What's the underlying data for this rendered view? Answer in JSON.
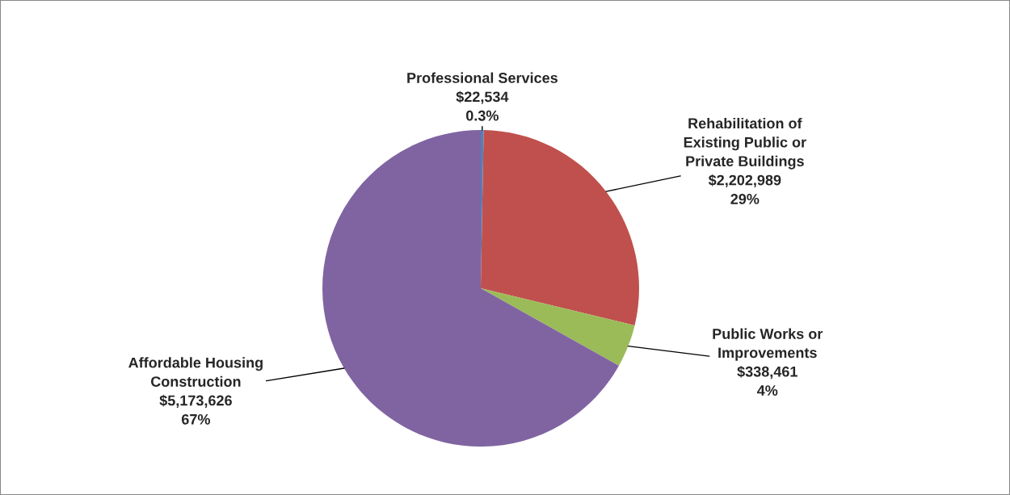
{
  "chart_data": {
    "type": "pie",
    "categories": [
      "Professional Services",
      "Rehabilitation of\nExisting Public or\nPrivate Buildings",
      "Public Works or\nImprovements",
      "Affordable Housing\nConstruction"
    ],
    "values": [
      22534,
      2202989,
      338461,
      5173626
    ],
    "value_labels": [
      "$22,534\n0.3%",
      "$2,202,989\n29%",
      "$338,461\n4%",
      "$5,173,626\n67%"
    ],
    "colors": [
      "#4f81bd",
      "#c0504d",
      "#9bbb59",
      "#8064a2"
    ],
    "legend": false
  }
}
